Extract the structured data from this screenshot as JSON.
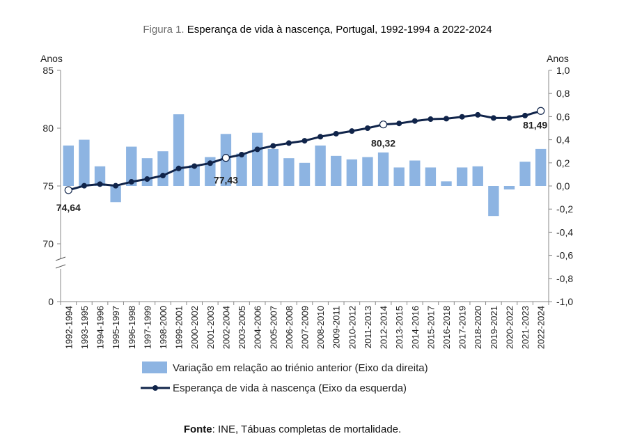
{
  "figure": {
    "number_label": "Figura 1.",
    "title": "Esperança de vida à nascença, Portugal, 1992-1994 a 2022-2024"
  },
  "source": {
    "label": "Fonte",
    "text": ": INE, Tábuas completas de mortalidade."
  },
  "chart_data": {
    "type": "bar+line",
    "title": "Esperança de vida à nascença, Portugal, 1992-1994 a 2022-2024",
    "categories": [
      "1992-1994",
      "1993-1995",
      "1994-1996",
      "1995-1997",
      "1996-1998",
      "1997-1999",
      "1998-2000",
      "1999-2001",
      "2000-2002",
      "2001-2003",
      "2002-2004",
      "2003-2005",
      "2004-2006",
      "2005-2007",
      "2006-2008",
      "2007-2009",
      "2008-2010",
      "2009-2011",
      "2010-2012",
      "2011-2013",
      "2012-2014",
      "2013-2015",
      "2014-2016",
      "2015-2017",
      "2016-2018",
      "2017-2019",
      "2018-2020",
      "2019-2021",
      "2020-2022",
      "2021-2023",
      "2022-2024"
    ],
    "left_axis": {
      "label": "Anos",
      "ylim": [
        0,
        85
      ],
      "ticks": [
        "0",
        "70",
        "75",
        "80",
        "85"
      ],
      "break_between": [
        0,
        70
      ]
    },
    "right_axis": {
      "label": "Anos",
      "ylim": [
        -1.0,
        1.0
      ],
      "ticks": [
        "-1,0",
        "-0,8",
        "-0,6",
        "-0,4",
        "-0,2",
        "0,0",
        "0,2",
        "0,4",
        "0,6",
        "0,8",
        "1,0"
      ]
    },
    "series": [
      {
        "name": "Variação em relação ao triénio anterior (Eixo da direita)",
        "type": "bar",
        "axis": "right",
        "color": "#8db4e2",
        "values": [
          0.35,
          0.4,
          0.17,
          -0.14,
          0.34,
          0.24,
          0.3,
          0.62,
          0.18,
          0.25,
          0.45,
          0.28,
          0.46,
          0.32,
          0.24,
          0.2,
          0.35,
          0.26,
          0.23,
          0.25,
          0.29,
          0.16,
          0.22,
          0.16,
          0.04,
          0.16,
          0.17,
          -0.26,
          -0.03,
          0.21,
          0.32
        ]
      },
      {
        "name": "Esperança de vida à nascença (Eixo da esquerda)",
        "type": "line",
        "axis": "left",
        "color": "#10244a",
        "values": [
          74.64,
          75.02,
          75.16,
          75.02,
          75.36,
          75.6,
          75.9,
          76.52,
          76.72,
          76.97,
          77.43,
          77.71,
          78.17,
          78.47,
          78.71,
          78.91,
          79.26,
          79.52,
          79.75,
          80.0,
          80.32,
          80.41,
          80.62,
          80.78,
          80.82,
          80.98,
          81.15,
          80.88,
          80.88,
          81.09,
          81.49
        ]
      }
    ],
    "highlighted_points": [
      {
        "index": 0,
        "label": "74,64"
      },
      {
        "index": 10,
        "label": "77,43"
      },
      {
        "index": 20,
        "label": "80,32"
      },
      {
        "index": 30,
        "label": "81,49"
      }
    ]
  }
}
